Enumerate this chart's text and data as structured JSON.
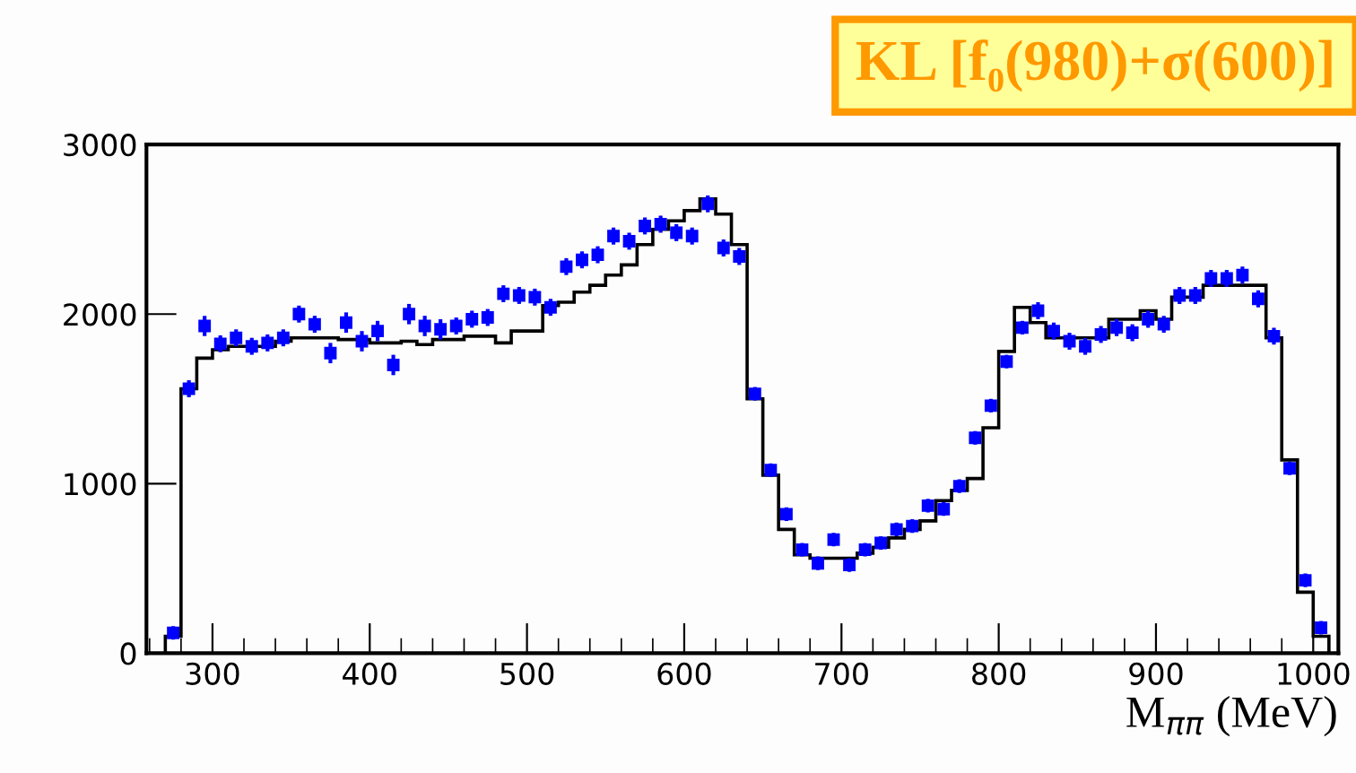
{
  "chart_data": {
    "type": "histogram",
    "title": "KL [f₀(980)+σ(600)]",
    "xlabel": "M$_{ππ}$ (MeV)",
    "bins": [
      270,
      280,
      290,
      300,
      310,
      320,
      330,
      340,
      350,
      360,
      370,
      380,
      390,
      400,
      410,
      420,
      430,
      440,
      450,
      460,
      470,
      480,
      490,
      500,
      510,
      520,
      530,
      540,
      550,
      560,
      570,
      580,
      590,
      600,
      610,
      620,
      630,
      640,
      650,
      660,
      670,
      680,
      690,
      700,
      710,
      720,
      730,
      740,
      750,
      760,
      770,
      780,
      790,
      800,
      810,
      820,
      830,
      840,
      850,
      860,
      870,
      880,
      890,
      900,
      910,
      920,
      930,
      940,
      950,
      960,
      970,
      980,
      990,
      1000,
      1010
    ],
    "values": [
      100,
      1560,
      1740,
      1790,
      1810,
      1810,
      1810,
      1840,
      1860,
      1860,
      1860,
      1850,
      1850,
      1830,
      1830,
      1840,
      1820,
      1850,
      1850,
      1870,
      1870,
      1830,
      1900,
      1900,
      2050,
      2070,
      2130,
      2170,
      2230,
      2290,
      2410,
      2500,
      2550,
      2610,
      2680,
      2590,
      2410,
      1500,
      1050,
      730,
      580,
      560,
      560,
      560,
      590,
      625,
      680,
      730,
      780,
      900,
      960,
      1030,
      1330,
      1780,
      2040,
      1950,
      1860,
      1860,
      1860,
      1860,
      1970,
      1970,
      2020,
      1970,
      2100,
      2100,
      2170,
      2170,
      2170,
      2170,
      1860,
      1140,
      360,
      100
    ],
    "color": "#000000",
    "series": [
      {
        "type": "scatter",
        "color": "#0000ff",
        "marker": "square",
        "x": [
          275,
          285,
          295,
          305,
          315,
          325,
          335,
          345,
          355,
          365,
          375,
          385,
          395,
          405,
          415,
          425,
          435,
          445,
          455,
          465,
          475,
          485,
          495,
          505,
          515,
          525,
          535,
          545,
          555,
          565,
          575,
          585,
          595,
          605,
          615,
          625,
          635,
          645,
          655,
          665,
          675,
          685,
          695,
          705,
          715,
          725,
          735,
          745,
          755,
          765,
          775,
          785,
          795,
          805,
          815,
          825,
          835,
          845,
          855,
          865,
          875,
          885,
          895,
          905,
          915,
          925,
          935,
          945,
          955,
          965,
          975,
          985,
          995,
          1005
        ],
        "values": [
          120,
          1560,
          1930,
          1825,
          1860,
          1810,
          1830,
          1860,
          2000,
          1940,
          1770,
          1950,
          1840,
          1900,
          1700,
          2000,
          1930,
          1910,
          1930,
          1970,
          1980,
          2120,
          2110,
          2100,
          2040,
          2280,
          2320,
          2350,
          2460,
          2430,
          2520,
          2530,
          2480,
          2460,
          2650,
          2390,
          2340,
          1530,
          1080,
          820,
          610,
          530,
          670,
          520,
          610,
          650,
          730,
          750,
          870,
          850,
          985,
          1270,
          1460,
          1720,
          1920,
          2020,
          1900,
          1840,
          1810,
          1880,
          1920,
          1890,
          1970,
          1940,
          2110,
          2110,
          2210,
          2210,
          2230,
          2090,
          1870,
          1090,
          430,
          150
        ],
        "errors": [
          40,
          50,
          60,
          50,
          50,
          50,
          50,
          50,
          50,
          50,
          60,
          60,
          60,
          60,
          60,
          60,
          60,
          60,
          50,
          50,
          50,
          50,
          50,
          50,
          50,
          50,
          50,
          50,
          50,
          50,
          50,
          50,
          50,
          50,
          50,
          50,
          50,
          40,
          40,
          40,
          40,
          40,
          40,
          40,
          40,
          40,
          40,
          40,
          40,
          40,
          40,
          40,
          40,
          40,
          40,
          50,
          50,
          50,
          50,
          50,
          50,
          50,
          50,
          50,
          50,
          50,
          50,
          50,
          50,
          50,
          50,
          40,
          40,
          40
        ]
      }
    ],
    "xlim": [
      258,
      1016
    ],
    "ylim": [
      0,
      3000
    ],
    "xticks": [
      300,
      400,
      500,
      600,
      700,
      800,
      900,
      1000
    ],
    "yticks": [
      0,
      1000,
      2000,
      3000
    ],
    "grid": false,
    "legend": false
  }
}
